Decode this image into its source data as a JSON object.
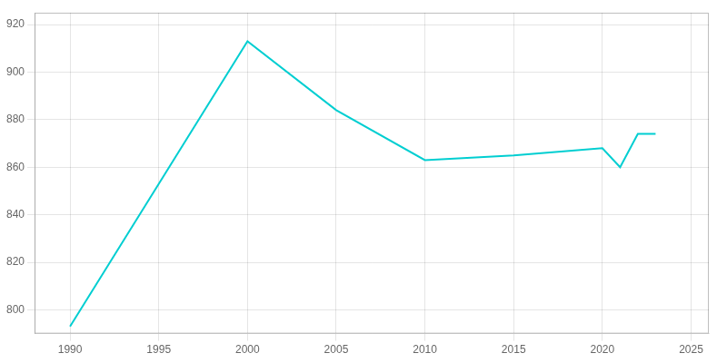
{
  "chart_data": {
    "type": "line",
    "x": [
      1990,
      2000,
      2005,
      2010,
      2015,
      2020,
      2021,
      2022,
      2023
    ],
    "values": [
      793,
      913,
      884,
      863,
      865,
      868,
      860,
      874,
      874
    ],
    "color": "#00CED1",
    "xlim": [
      1988,
      2026
    ],
    "ylim": [
      790,
      925
    ],
    "xticks": [
      1990,
      1995,
      2000,
      2005,
      2010,
      2015,
      2020,
      2025
    ],
    "yticks": [
      800,
      820,
      840,
      860,
      880,
      900,
      920
    ],
    "grid": true
  }
}
